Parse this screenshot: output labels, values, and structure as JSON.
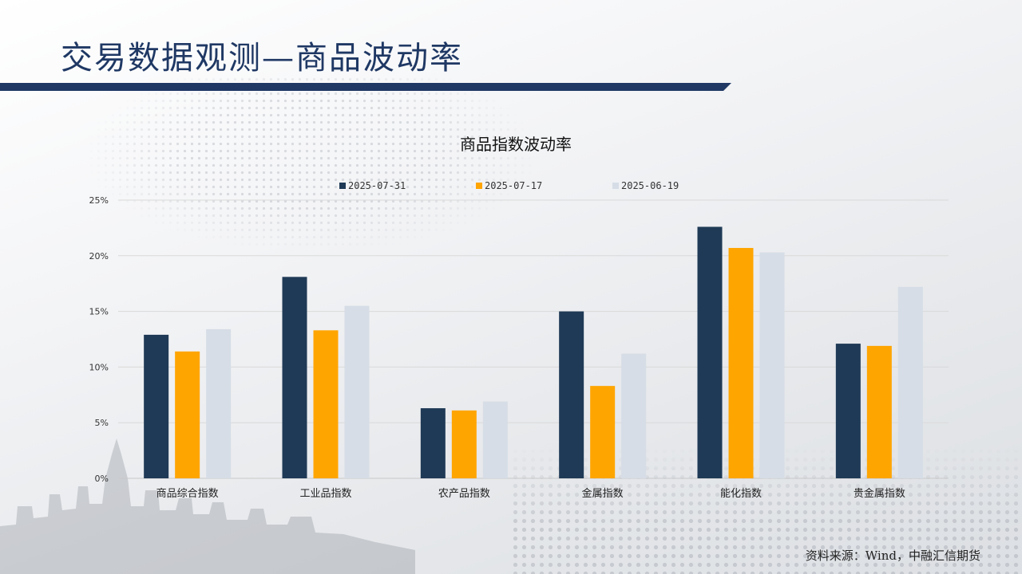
{
  "page": {
    "title": "交易数据观测—商品波动率",
    "source": "资料来源：Wind，中融汇信期货"
  },
  "colors": {
    "title": "#1f3864",
    "series": [
      "#1f3a56",
      "#ffa500",
      "#d6dde6"
    ]
  },
  "chart_data": {
    "type": "bar",
    "title": "商品指数波动率",
    "categories": [
      "商品综合指数",
      "工业品指数",
      "农产品指数",
      "金属指数",
      "能化指数",
      "贵金属指数"
    ],
    "series": [
      {
        "name": "2025-07-31",
        "values": [
          12.9,
          18.1,
          6.3,
          15.0,
          22.6,
          12.1
        ]
      },
      {
        "name": "2025-07-17",
        "values": [
          11.4,
          13.3,
          6.1,
          8.3,
          20.7,
          11.9
        ]
      },
      {
        "name": "2025-06-19",
        "values": [
          13.4,
          15.5,
          6.9,
          11.2,
          20.3,
          17.2
        ]
      }
    ],
    "yticks": [
      "0%",
      "5%",
      "10%",
      "15%",
      "20%",
      "25%"
    ],
    "ylim": [
      0,
      25
    ],
    "xlabel": "",
    "ylabel": "",
    "grid": true,
    "legend": "top"
  }
}
